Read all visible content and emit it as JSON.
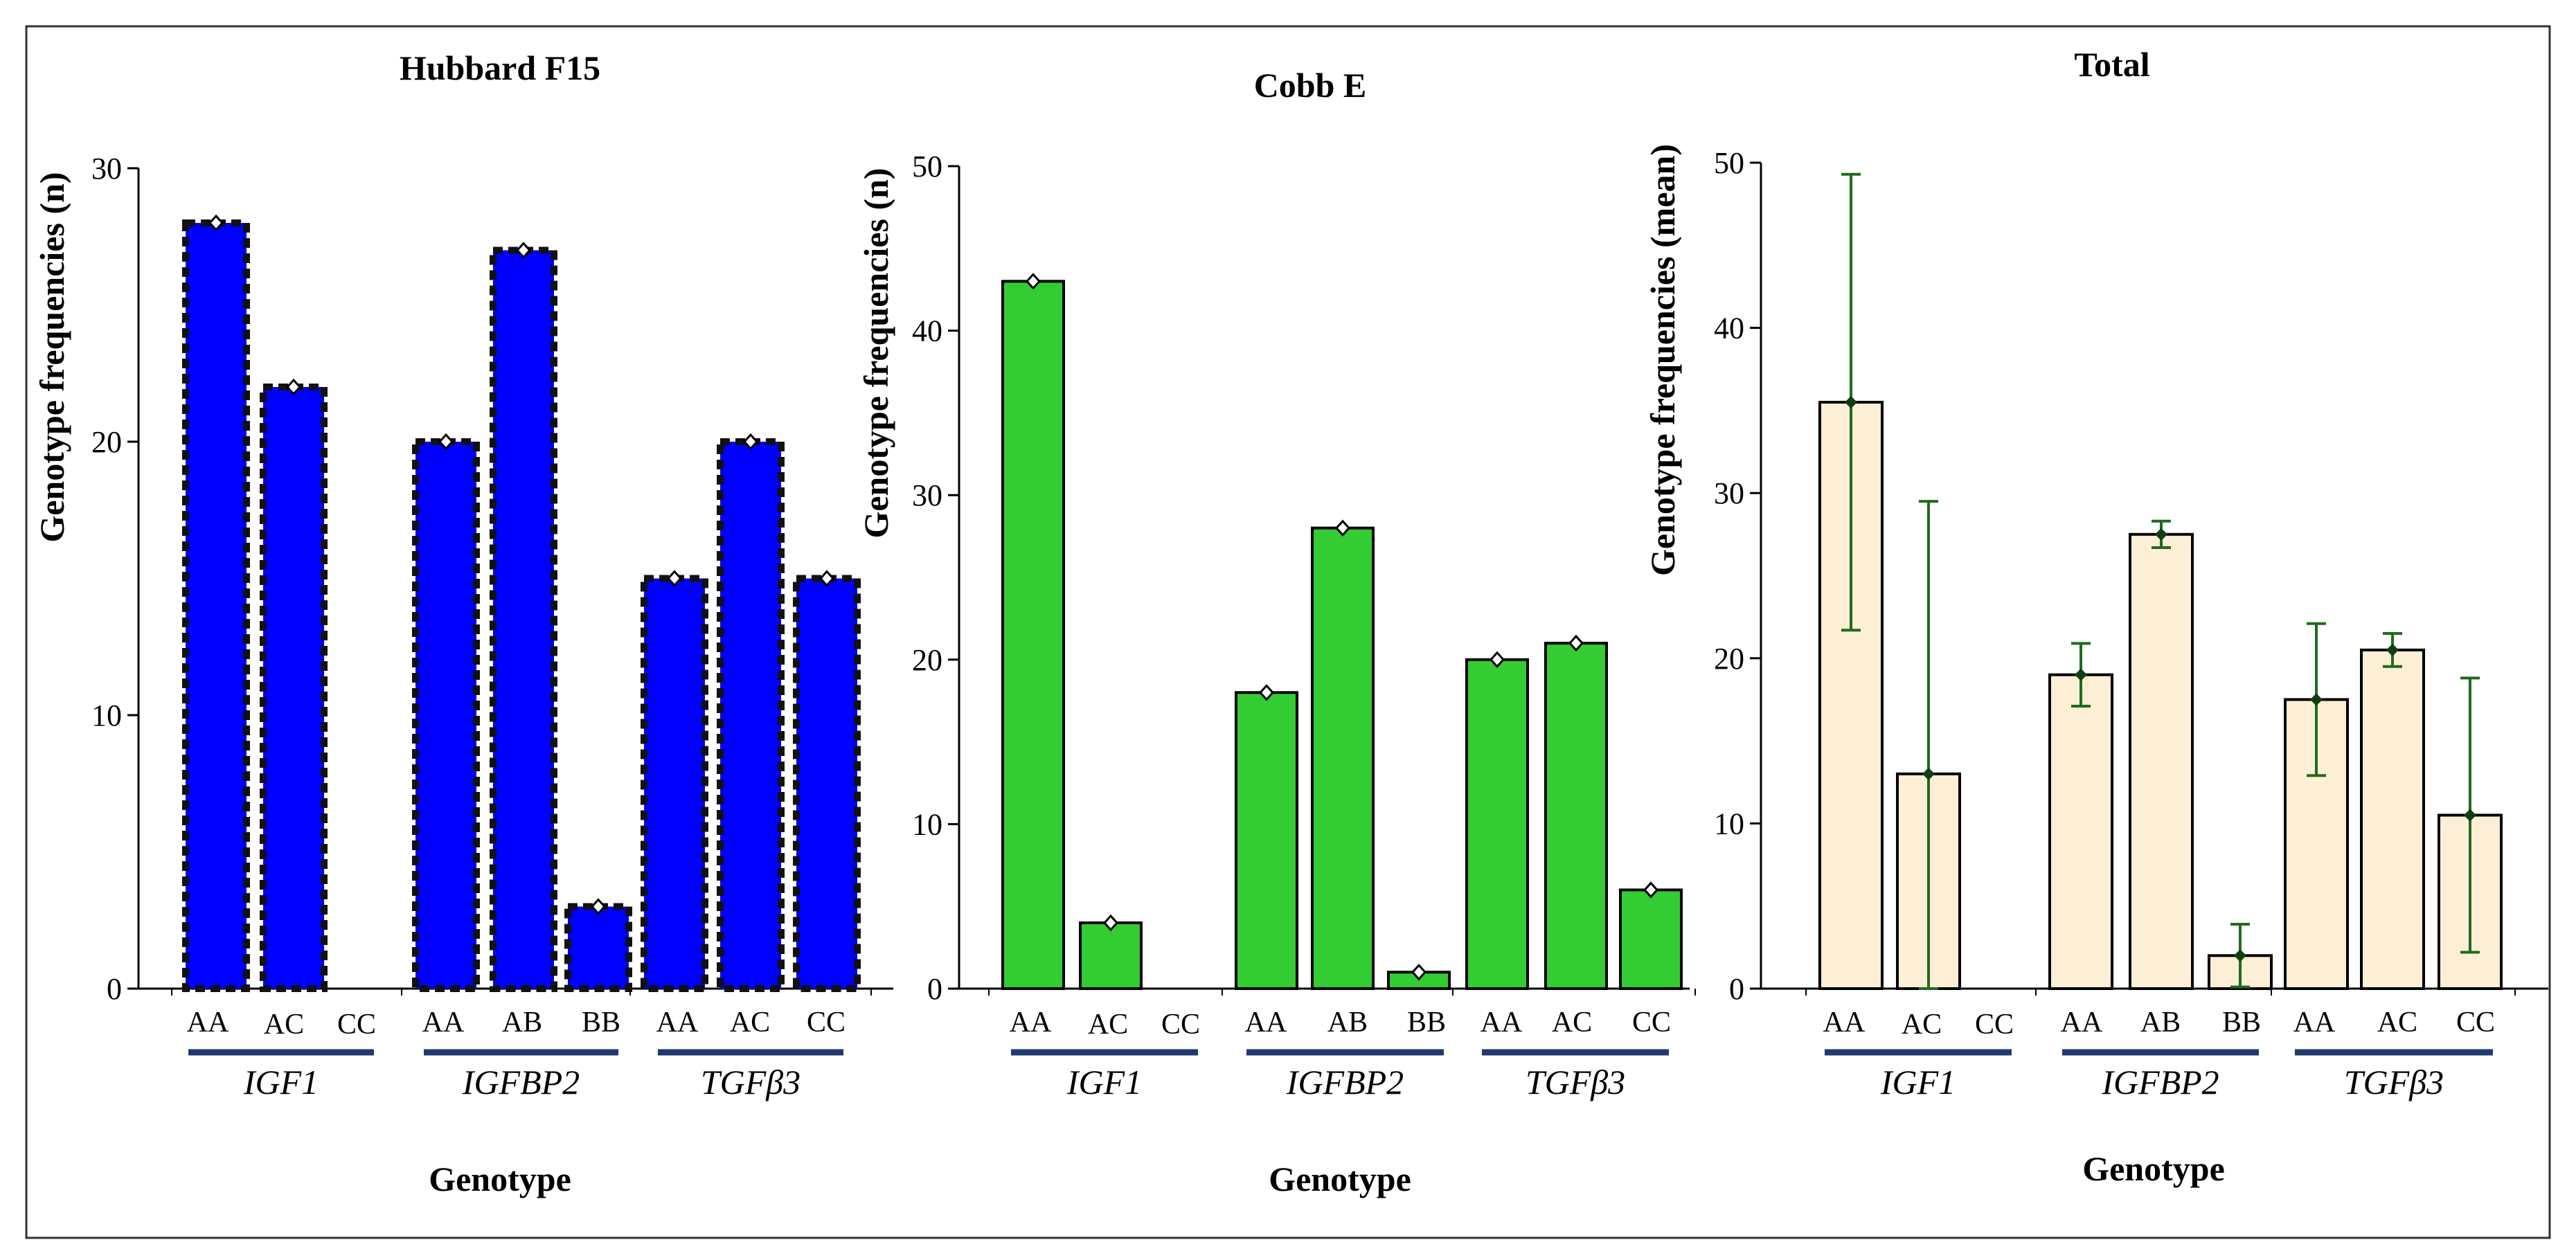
{
  "chart_data": [
    {
      "type": "bar",
      "title": "Hubbard F15",
      "ylabel": "Genotype frequencies (n)",
      "xlabel": "Genotype",
      "ylim": [
        0,
        30
      ],
      "yticks": [
        "0",
        "10",
        "20",
        "30"
      ],
      "groups": [
        {
          "gene": "IGF1",
          "categories": [
            "AA",
            "AC",
            "CC"
          ],
          "values": [
            28,
            22,
            null
          ]
        },
        {
          "gene": "IGFBP2",
          "categories": [
            "AA",
            "AB",
            "BB"
          ],
          "values": [
            20,
            27,
            3
          ]
        },
        {
          "gene": "TGFβ3",
          "categories": [
            "AA",
            "AC",
            "CC"
          ],
          "values": [
            15,
            20,
            15
          ]
        }
      ],
      "style": {
        "fill": "#0000ff",
        "stroke": "#111111",
        "dashed": true,
        "error_color": "#000000"
      }
    },
    {
      "type": "bar",
      "title": "Cobb E",
      "ylabel": "Genotype frequencies (n)",
      "xlabel": "Genotype",
      "ylim": [
        0,
        50
      ],
      "yticks": [
        "0",
        "10",
        "20",
        "30",
        "40",
        "50"
      ],
      "groups": [
        {
          "gene": "IGF1",
          "categories": [
            "AA",
            "AC",
            "CC"
          ],
          "values": [
            43,
            4,
            null
          ]
        },
        {
          "gene": "IGFBP2",
          "categories": [
            "AA",
            "AB",
            "BB"
          ],
          "values": [
            18,
            28,
            1
          ]
        },
        {
          "gene": "TGFβ3",
          "categories": [
            "AA",
            "AC",
            "CC"
          ],
          "values": [
            20,
            21,
            6
          ]
        }
      ],
      "style": {
        "fill": "#33cc33",
        "stroke": "#000000",
        "dashed": false,
        "error_color": "#000000"
      }
    },
    {
      "type": "bar",
      "title": "Total",
      "ylabel": "Genotype frequencies (mean)",
      "xlabel": "Genotype",
      "ylim": [
        0,
        50
      ],
      "yticks": [
        "0",
        "10",
        "20",
        "30",
        "40",
        "50"
      ],
      "groups": [
        {
          "gene": "IGF1",
          "categories": [
            "AA",
            "AC",
            "CC"
          ],
          "values": [
            35.5,
            13,
            null
          ],
          "errors": [
            13.8,
            16.5,
            null
          ]
        },
        {
          "gene": "IGFBP2",
          "categories": [
            "AA",
            "AB",
            "BB"
          ],
          "values": [
            19,
            27.5,
            2
          ],
          "errors": [
            1.9,
            0.8,
            1.9
          ]
        },
        {
          "gene": "TGFβ3",
          "categories": [
            "AA",
            "AC",
            "CC"
          ],
          "values": [
            17.5,
            20.5,
            10.5
          ],
          "errors": [
            4.6,
            1.0,
            8.3
          ]
        }
      ],
      "style": {
        "fill": "#fdefd6",
        "stroke": "#000000",
        "dashed": false,
        "error_color": "#1e6b1e"
      }
    }
  ]
}
